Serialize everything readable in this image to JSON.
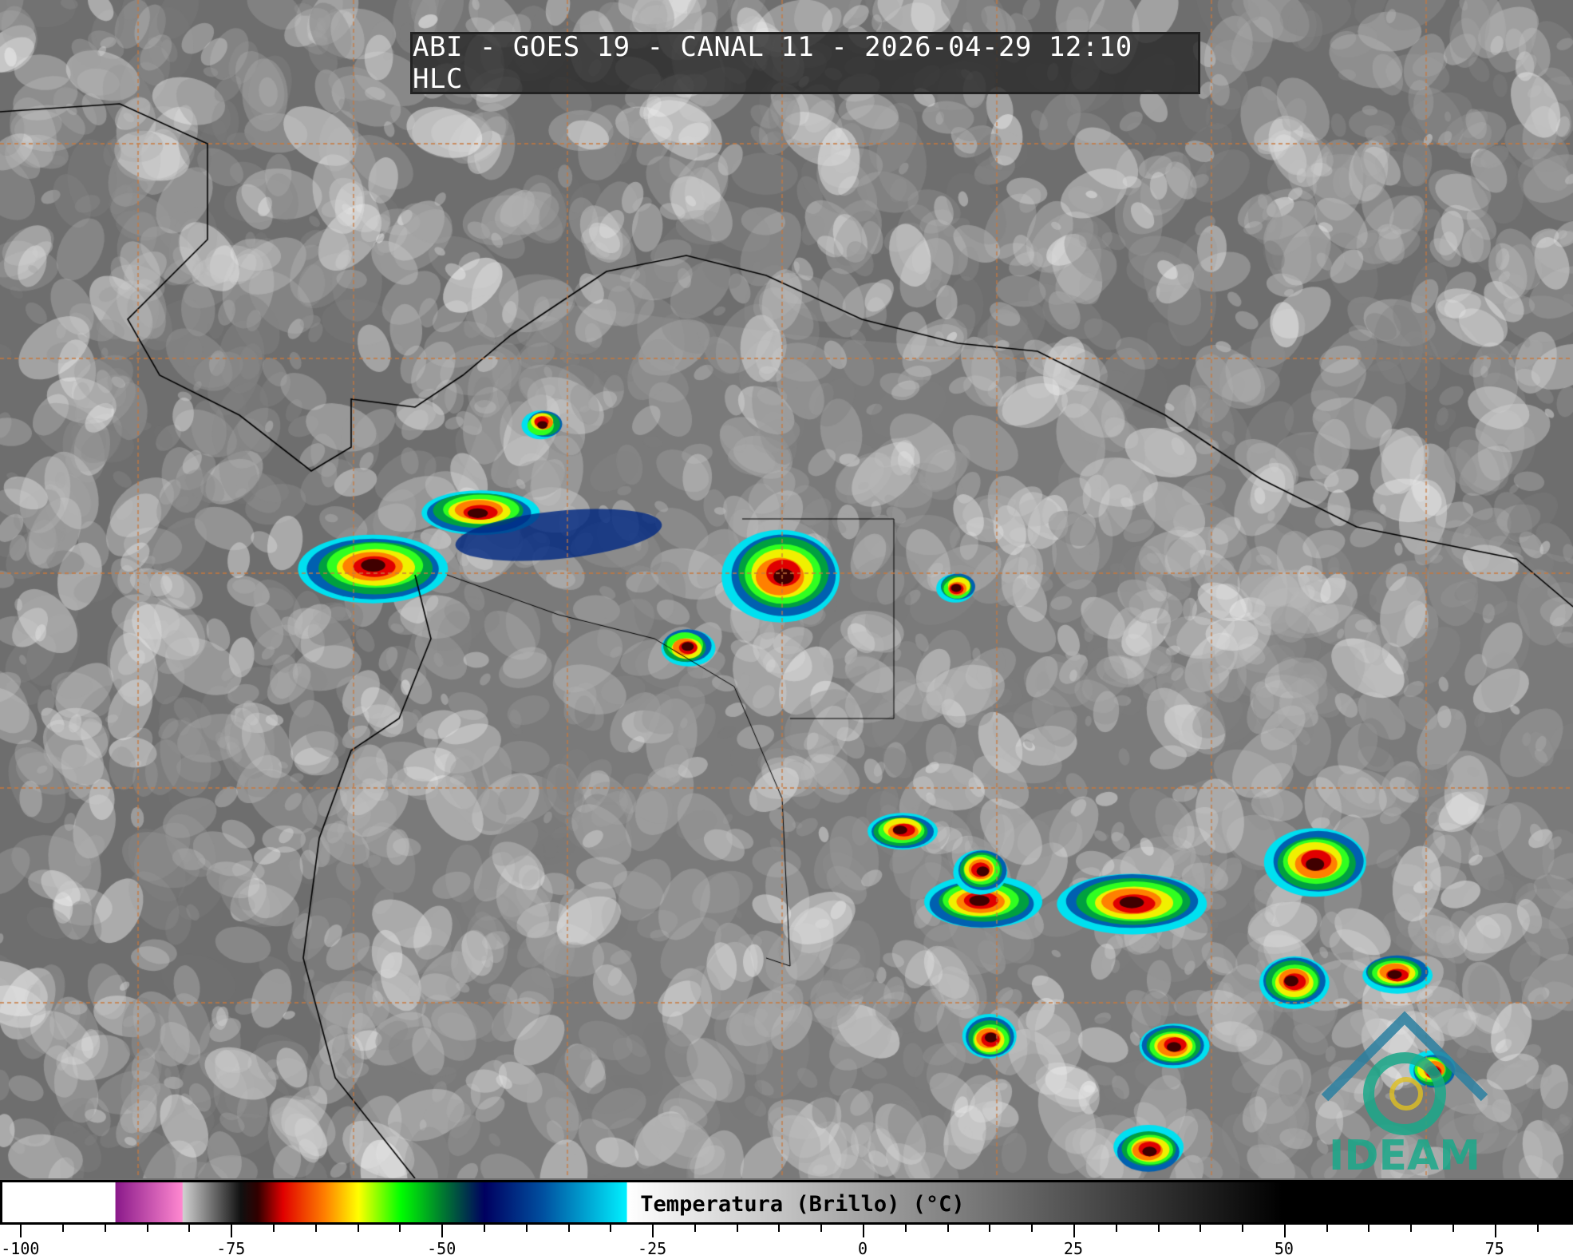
{
  "title": "ABI - GOES 19 - CANAL 11 - 2026-04-29 12:10 HLC",
  "colorbar": {
    "label": "Temperatura (Brillo) (°C)",
    "range": [
      -102.4,
      84.3
    ],
    "major_ticks": [
      "-100",
      "-75",
      "-50",
      "-25",
      "0",
      "25",
      "50",
      "75"
    ],
    "minor_tick_step": 5,
    "stops": [
      {
        "t": -102.4,
        "color": "#ffffff"
      },
      {
        "t": -89,
        "color": "#ffffff"
      },
      {
        "t": -88.9,
        "color": "#8a1a8a"
      },
      {
        "t": -81,
        "color": "#ff88d0"
      },
      {
        "t": -80.9,
        "color": "#d0d0d0"
      },
      {
        "t": -74,
        "color": "#101010"
      },
      {
        "t": -72,
        "color": "#300000"
      },
      {
        "t": -69,
        "color": "#e00000"
      },
      {
        "t": -64,
        "color": "#ff8000"
      },
      {
        "t": -60,
        "color": "#ffff00"
      },
      {
        "t": -55,
        "color": "#00ff00"
      },
      {
        "t": -50,
        "color": "#007a30"
      },
      {
        "t": -45,
        "color": "#000060"
      },
      {
        "t": -38,
        "color": "#0050a0"
      },
      {
        "t": -28.1,
        "color": "#00f0ff"
      },
      {
        "t": -28,
        "color": "#ffffff"
      },
      {
        "t": 50,
        "color": "#000000"
      },
      {
        "t": 84.3,
        "color": "#000000"
      }
    ]
  },
  "logo": {
    "text": "IDEAM",
    "color": "#1aa88a"
  },
  "grid_color": "#c8783c"
}
